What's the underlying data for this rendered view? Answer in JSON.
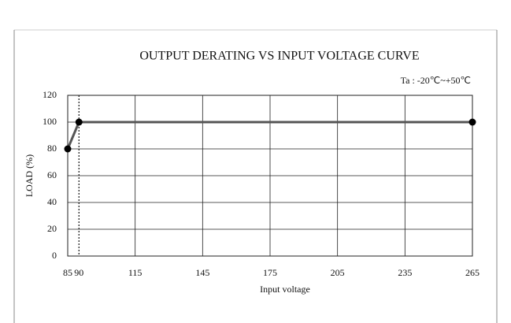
{
  "chart_data": {
    "type": "line",
    "title": "OUTPUT DERATING VS INPUT VOLTAGE CURVE",
    "annotation": "Ta : -20℃~+50℃",
    "x_label": "Input voltage",
    "y_label": "LOAD (%)",
    "x": [
      85,
      90,
      265
    ],
    "series": [
      {
        "color": "#555555",
        "values": [
          80,
          100,
          100
        ]
      }
    ],
    "xlim": [
      85,
      265
    ],
    "xticks": [
      85,
      90,
      115,
      145,
      175,
      205,
      235,
      265
    ],
    "ylim": [
      0,
      120
    ],
    "yticks": [
      0,
      20,
      40,
      60,
      80,
      100,
      120
    ],
    "vlines": [
      90
    ],
    "grid": true
  }
}
